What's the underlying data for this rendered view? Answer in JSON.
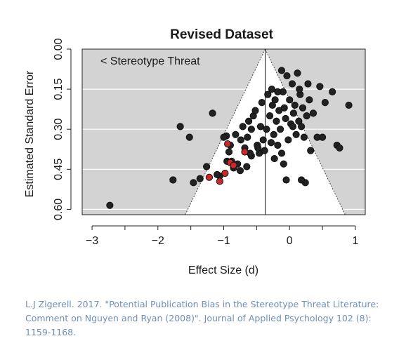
{
  "chart_data": {
    "type": "scatter",
    "title": "Revised Dataset",
    "xlabel": "Effect Size (d)",
    "ylabel": "Estimated Standard Error",
    "xlim": [
      -3.15,
      1.15
    ],
    "ylim": [
      0.0,
      0.62
    ],
    "y_reversed": true,
    "x_ticks": [
      -3,
      -2,
      -1,
      0,
      1
    ],
    "x_tick_labels": [
      "−3",
      "−2",
      "−1",
      "0",
      "1"
    ],
    "y_ticks": [
      0.0,
      0.15,
      0.3,
      0.45,
      0.6
    ],
    "y_tick_labels": [
      "0.00",
      "0.15",
      "0.30",
      "0.45",
      "0.60"
    ],
    "annotation": "< Stereotype Threat",
    "center_effect": -0.37,
    "funnel_halfwidth_per_se": 1.96,
    "grid": true,
    "colors": {
      "background": "#d3d3d3",
      "funnel": "#ffffff",
      "point": "#222222",
      "highlight": "#cc2a2a"
    },
    "series": [
      {
        "color": "#222222",
        "points": [
          [
            -2.73,
            0.585
          ],
          [
            -1.77,
            0.49
          ],
          [
            -1.66,
            0.29
          ],
          [
            -1.52,
            0.33
          ],
          [
            -1.46,
            0.5
          ],
          [
            -1.36,
            0.485
          ],
          [
            -1.26,
            0.44
          ],
          [
            -1.17,
            0.24
          ],
          [
            -1.06,
            0.475
          ],
          [
            -0.96,
            0.325
          ],
          [
            -0.92,
            0.385
          ],
          [
            -0.88,
            0.42
          ],
          [
            -0.85,
            0.445
          ],
          [
            -0.82,
            0.32
          ],
          [
            -0.79,
            0.43
          ],
          [
            -0.75,
            0.455
          ],
          [
            -0.71,
            0.29
          ],
          [
            -0.68,
            0.37
          ],
          [
            -0.64,
            0.33
          ],
          [
            -0.62,
            0.27
          ],
          [
            -0.58,
            0.4
          ],
          [
            -0.55,
            0.25
          ],
          [
            -0.52,
            0.23
          ],
          [
            -0.49,
            0.36
          ],
          [
            -0.46,
            0.39
          ],
          [
            -0.44,
            0.29
          ],
          [
            -0.42,
            0.2
          ],
          [
            -0.4,
            0.34
          ],
          [
            -0.38,
            0.38
          ],
          [
            -0.35,
            0.3
          ],
          [
            -0.33,
            0.17
          ],
          [
            -0.3,
            0.25
          ],
          [
            -0.28,
            0.35
          ],
          [
            -0.26,
            0.21
          ],
          [
            -0.24,
            0.32
          ],
          [
            -0.22,
            0.19
          ],
          [
            -0.2,
            0.27
          ],
          [
            -0.18,
            0.36
          ],
          [
            -0.16,
            0.23
          ],
          [
            -0.14,
            0.3
          ],
          [
            -0.12,
            0.08
          ],
          [
            -0.1,
            0.16
          ],
          [
            -0.08,
            0.22
          ],
          [
            -0.06,
            0.26
          ],
          [
            -0.04,
            0.1
          ],
          [
            -0.02,
            0.34
          ],
          [
            0.0,
            0.19
          ],
          [
            0.02,
            0.28
          ],
          [
            0.04,
            0.13
          ],
          [
            0.06,
            0.24
          ],
          [
            0.08,
            0.21
          ],
          [
            0.1,
            0.32
          ],
          [
            0.12,
            0.09
          ],
          [
            0.14,
            0.27
          ],
          [
            0.16,
            0.17
          ],
          [
            0.18,
            0.29
          ],
          [
            0.2,
            0.22
          ],
          [
            0.22,
            0.33
          ],
          [
            0.24,
            0.5
          ],
          [
            0.26,
            0.25
          ],
          [
            0.28,
            0.13
          ],
          [
            0.3,
            0.19
          ],
          [
            0.32,
            0.38
          ],
          [
            0.36,
            0.24
          ],
          [
            0.42,
            0.33
          ],
          [
            0.46,
            0.14
          ],
          [
            0.5,
            0.33
          ],
          [
            0.54,
            0.2
          ],
          [
            0.65,
            0.16
          ],
          [
            0.72,
            0.36
          ],
          [
            0.76,
            0.37
          ],
          [
            0.9,
            0.21
          ],
          [
            -0.05,
            0.49
          ],
          [
            0.18,
            0.49
          ],
          [
            -0.6,
            0.39
          ],
          [
            -1.0,
            0.33
          ],
          [
            -0.9,
            0.36
          ],
          [
            -0.74,
            0.34
          ],
          [
            -0.58,
            0.3
          ],
          [
            -0.48,
            0.37
          ],
          [
            -0.23,
            0.41
          ],
          [
            -0.12,
            0.39
          ],
          [
            0.05,
            0.29
          ],
          [
            0.15,
            0.15
          ],
          [
            -0.18,
            0.16
          ],
          [
            -0.27,
            0.15
          ],
          [
            -0.09,
            0.43
          ],
          [
            -0.95,
            0.42
          ],
          [
            -1.1,
            0.47
          ],
          [
            -0.65,
            0.44
          ]
        ]
      },
      {
        "color": "#cc2a2a",
        "points": [
          [
            -1.22,
            0.48
          ],
          [
            -1.06,
            0.495
          ],
          [
            -0.98,
            0.465
          ],
          [
            -0.94,
            0.355
          ],
          [
            -0.9,
            0.425
          ],
          [
            -0.85,
            0.435
          ],
          [
            -0.68,
            0.385
          ]
        ]
      }
    ]
  },
  "caption": "L.J Zigerell. 2017. \"Potential Publication Bias in the Stereotype Threat Literature: Comment on Nguyen and Ryan (2008)\". Journal of Applied Psychology 102 (8): 1159-1168."
}
